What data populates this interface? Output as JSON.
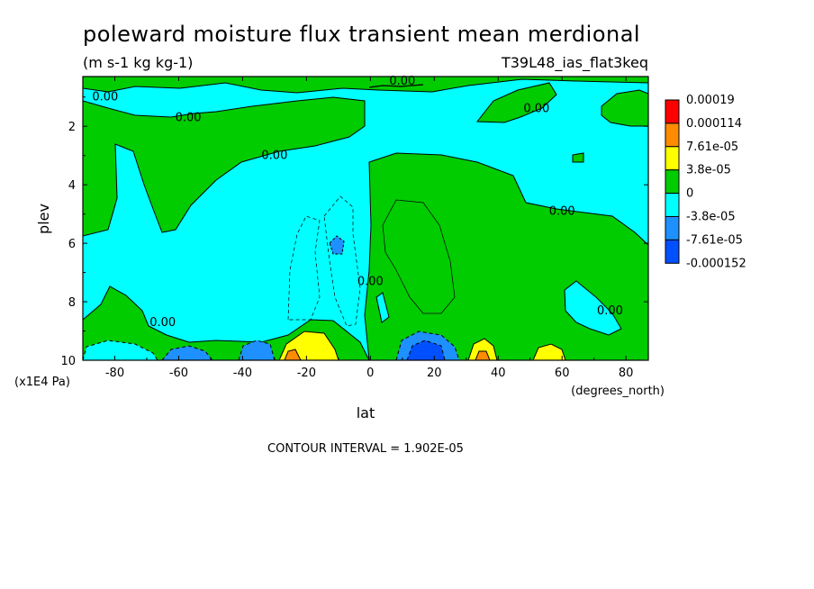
{
  "chart_data": {
    "type": "contour",
    "title": "poleward moisture flux transient mean merdional",
    "units": "(m s-1 kg kg-1)",
    "run_label": "T39L48_ias_flat3keq",
    "xlabel": "lat",
    "x_units": "(degrees_north)",
    "ylabel": "plev",
    "y_units": "(x1E4 Pa)",
    "x_range": [
      -90,
      87
    ],
    "y_range": [
      10,
      0.3
    ],
    "y_reversed": true,
    "x_ticks": [
      -80,
      -60,
      -40,
      -20,
      0,
      20,
      40,
      60,
      80
    ],
    "x_tick_labels": [
      "-80",
      "-60",
      "-40",
      "-20",
      "0",
      "20",
      "40",
      "60",
      "80"
    ],
    "y_ticks": [
      2,
      4,
      6,
      8,
      10
    ],
    "y_tick_labels": [
      "2",
      "4",
      "6",
      "8",
      "10"
    ],
    "contour_interval_text": "CONTOUR INTERVAL = 1.902E-05",
    "colorbar": {
      "labels": [
        "0.00019",
        "0.000114",
        "7.61e-05",
        "3.8e-05",
        "0",
        "-3.8e-05",
        "-7.61e-05",
        "-0.000152"
      ],
      "colors": [
        "#ff0000",
        "#ff8c00",
        "#ffff00",
        "#00cc00",
        "#00ffff",
        "#1e90ff",
        "#0050ff"
      ]
    },
    "contour_labels": [
      {
        "text": "0.00",
        "lat": -83,
        "plev": 1.0
      },
      {
        "text": "0.00",
        "lat": -57,
        "plev": 1.7
      },
      {
        "text": "0.00",
        "lat": 10,
        "plev": 0.45
      },
      {
        "text": "0.00",
        "lat": 52,
        "plev": 1.4
      },
      {
        "text": "0.00",
        "lat": -30,
        "plev": 3.0
      },
      {
        "text": "0.00",
        "lat": 60,
        "plev": 4.9
      },
      {
        "text": "0.00",
        "lat": 0,
        "plev": 7.3
      },
      {
        "text": "0.00",
        "lat": 75,
        "plev": 8.3
      },
      {
        "text": "0.00",
        "lat": -65,
        "plev": 8.7
      }
    ]
  }
}
